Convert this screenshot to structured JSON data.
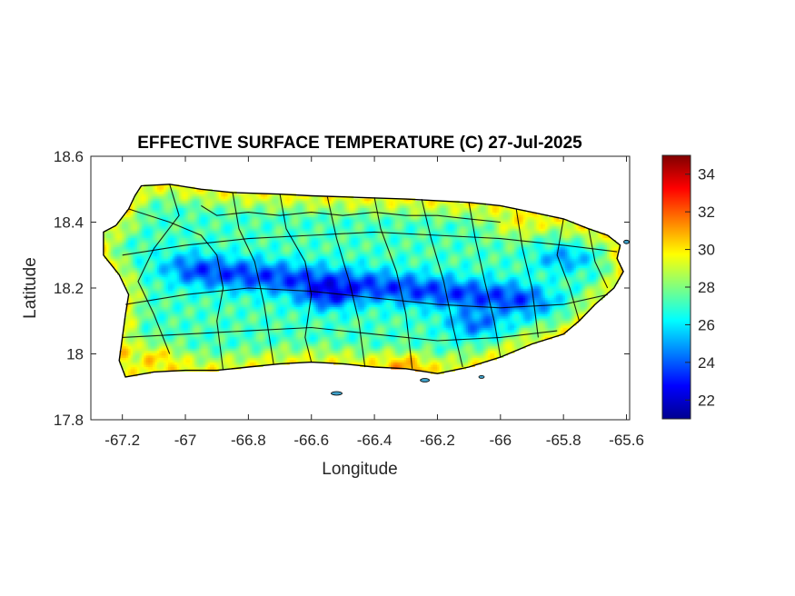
{
  "chart_data": {
    "type": "heatmap",
    "title": "EFFECTIVE SURFACE TEMPERATURE (C) 27-Jul-2025",
    "xlabel": "Longitude",
    "ylabel": "Latitude",
    "xlim": [
      -67.3,
      -65.59
    ],
    "ylim": [
      17.8,
      18.6
    ],
    "xticks": [
      -67.2,
      -67,
      -66.8,
      -66.6,
      -66.4,
      -66.2,
      -66,
      -65.8,
      -65.6
    ],
    "xtick_labels": [
      "-67.2",
      "-67",
      "-66.8",
      "-66.6",
      "-66.4",
      "-66.2",
      "-66",
      "-65.8",
      "-65.6"
    ],
    "yticks": [
      17.8,
      18,
      18.2,
      18.4,
      18.6
    ],
    "ytick_labels": [
      "17.8",
      "18",
      "18.2",
      "18.4",
      "18.6"
    ],
    "colorbar": {
      "colormap": "jet",
      "clim": [
        21,
        35
      ],
      "ticks": [
        22,
        24,
        26,
        28,
        30,
        32,
        34
      ],
      "tick_labels": [
        "22",
        "24",
        "26",
        "28",
        "30",
        "32",
        "34"
      ]
    },
    "region": "Puerto Rico (municipality boundaries overlaid)",
    "grid": false,
    "temperature_features": [
      {
        "description": "coastal warm zones",
        "lon": -67.1,
        "lat": 18.0,
        "value": 31
      },
      {
        "description": "coastal warm zones",
        "lon": -66.3,
        "lat": 17.97,
        "value": 30
      },
      {
        "description": "coastal warm zones",
        "lon": -65.95,
        "lat": 18.38,
        "value": 30
      },
      {
        "description": "central cordillera minimum",
        "lon": -66.55,
        "lat": 18.17,
        "value": 22
      },
      {
        "description": "central cordillera minimum",
        "lon": -66.08,
        "lat": 18.09,
        "value": 22
      },
      {
        "description": "El Yunque minimum",
        "lon": -65.8,
        "lat": 18.29,
        "value": 23
      }
    ]
  }
}
